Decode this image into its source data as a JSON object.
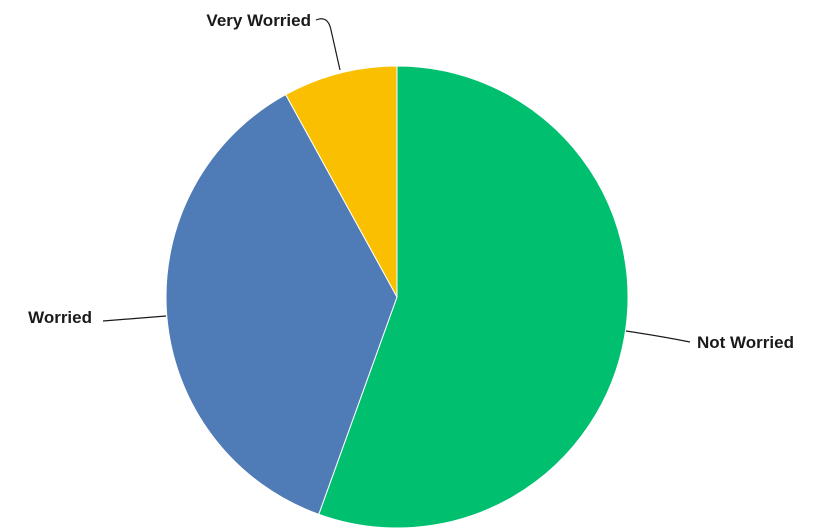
{
  "chart_data": {
    "type": "pie",
    "categories": [
      "Not Worried",
      "Worried",
      "Very Worried"
    ],
    "values": [
      55.5,
      36.5,
      8.0
    ],
    "colors": [
      "#00BF6F",
      "#4F7CB6",
      "#F9BF00"
    ],
    "title": "",
    "legend": "none",
    "start_angle": "12 o'clock",
    "direction": "clockwise"
  }
}
